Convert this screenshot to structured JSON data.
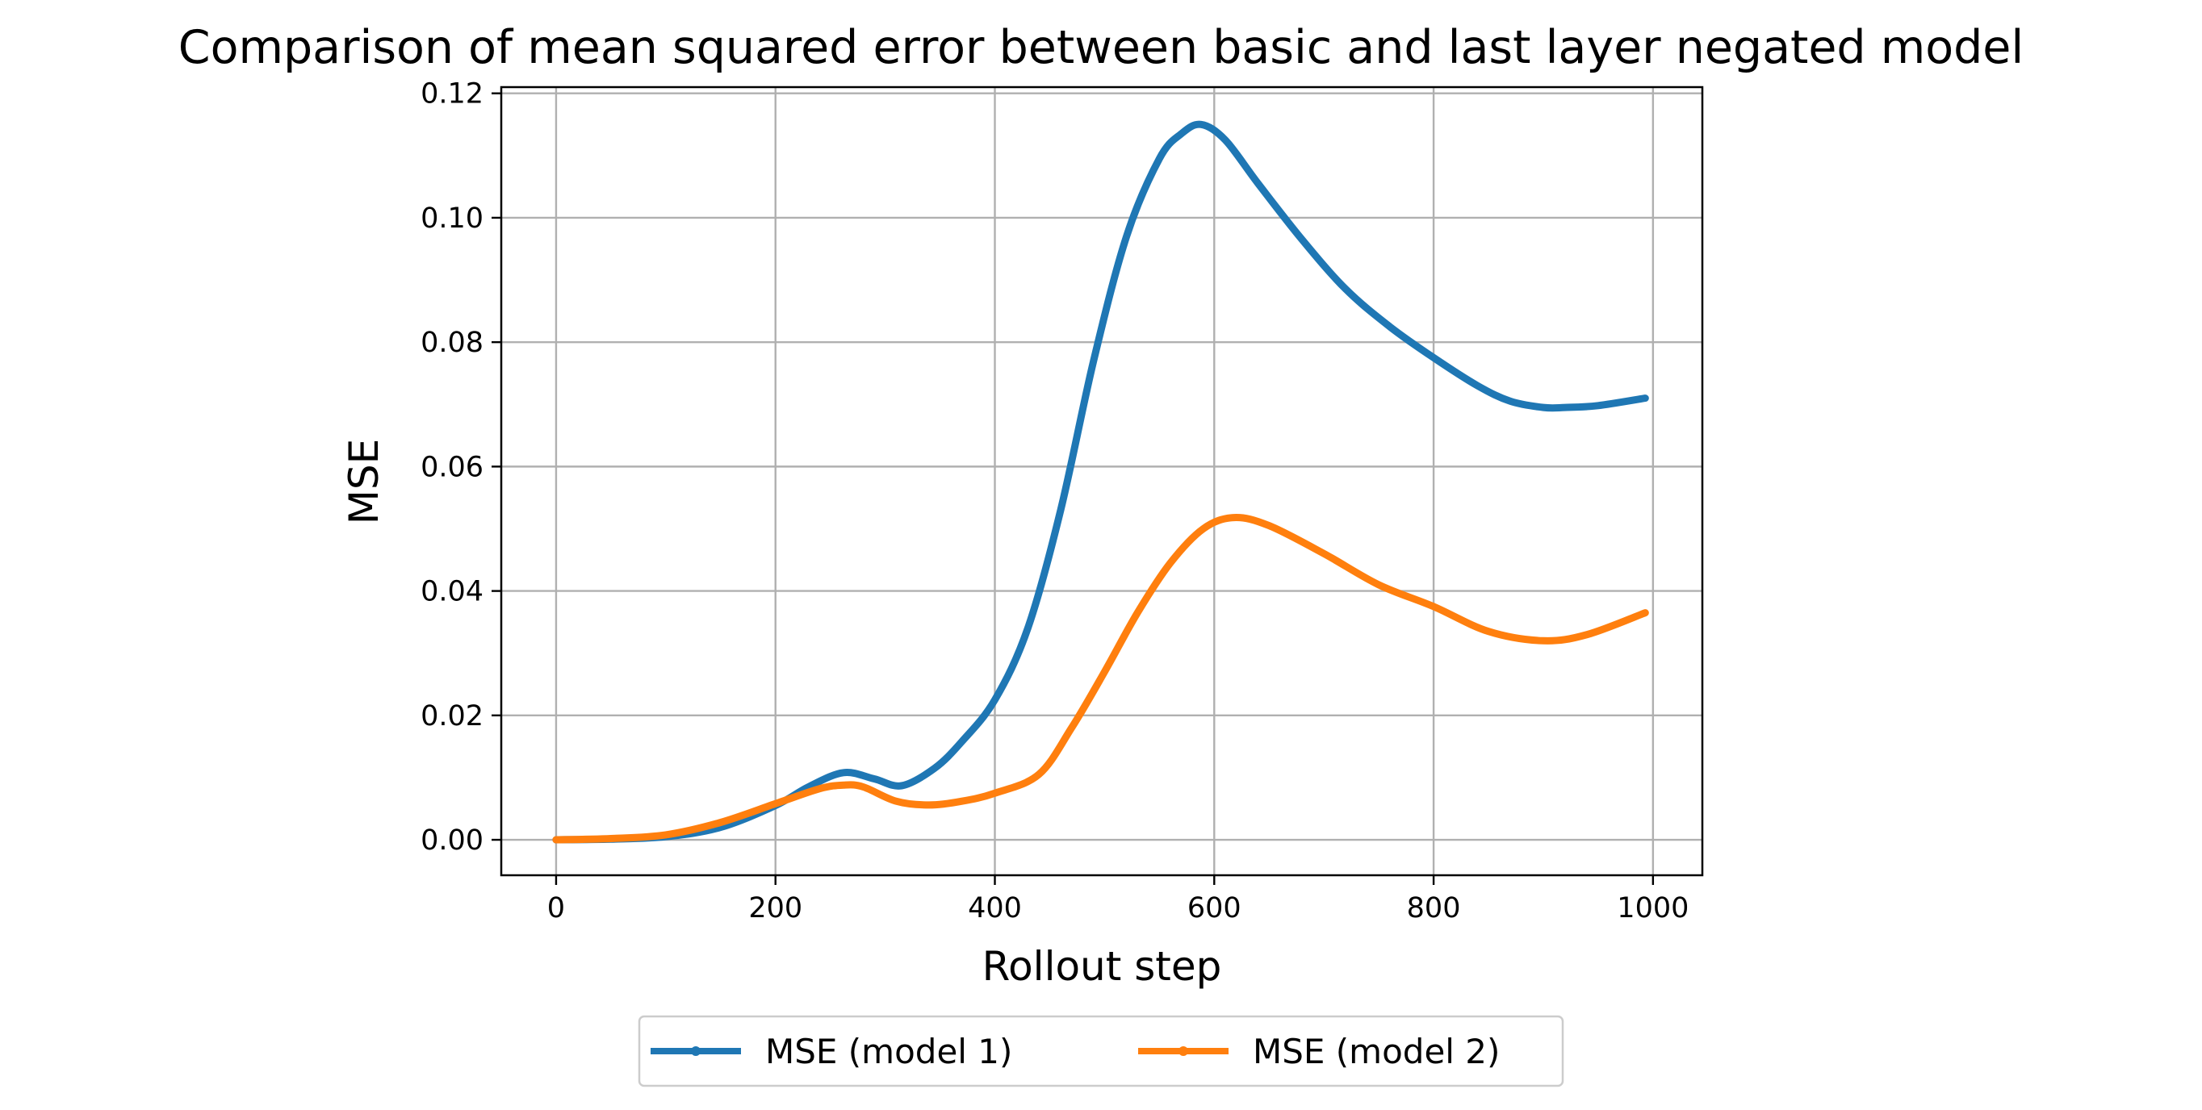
{
  "chart_data": {
    "type": "line",
    "title": "Comparison of mean squared error between basic and last layer negated model",
    "xlabel": "Rollout step",
    "ylabel": "MSE",
    "xlim": [
      -50,
      1045
    ],
    "ylim": [
      -0.0057,
      0.121
    ],
    "xticks": [
      0,
      200,
      400,
      600,
      800,
      1000
    ],
    "xtick_labels": [
      "0",
      "200",
      "400",
      "600",
      "800",
      "1000"
    ],
    "yticks": [
      0.0,
      0.02,
      0.04,
      0.06,
      0.08,
      0.1,
      0.12
    ],
    "ytick_labels": [
      "0.00",
      "0.02",
      "0.04",
      "0.06",
      "0.08",
      "0.10",
      "0.12"
    ],
    "grid": true,
    "legend": {
      "placement": "bottom-center, below axes",
      "ncol": 2
    },
    "series": [
      {
        "name": "MSE (model 1)",
        "color": "#1f77b4",
        "x": [
          0,
          50,
          100,
          150,
          200,
          230,
          262,
          290,
          315,
          345,
          370,
          400,
          430,
          460,
          490,
          520,
          550,
          570,
          588,
          610,
          640,
          680,
          720,
          760,
          800,
          840,
          870,
          900,
          920,
          950,
          993
        ],
        "y": [
          0.0,
          0.0001,
          0.0005,
          0.002,
          0.0055,
          0.0085,
          0.0108,
          0.0098,
          0.0087,
          0.0115,
          0.0158,
          0.0225,
          0.034,
          0.053,
          0.077,
          0.097,
          0.1095,
          0.1135,
          0.115,
          0.1125,
          0.1055,
          0.0965,
          0.0885,
          0.0825,
          0.0775,
          0.073,
          0.0705,
          0.0695,
          0.0695,
          0.0698,
          0.071
        ]
      },
      {
        "name": "MSE (model 2)",
        "color": "#ff7f0e",
        "x": [
          0,
          50,
          100,
          150,
          200,
          240,
          262,
          280,
          310,
          340,
          370,
          400,
          440,
          470,
          500,
          530,
          560,
          590,
          618,
          650,
          700,
          750,
          800,
          850,
          900,
          940,
          993
        ],
        "y": [
          0.0,
          0.0002,
          0.0008,
          0.0028,
          0.0058,
          0.0082,
          0.0088,
          0.0085,
          0.0062,
          0.0056,
          0.0062,
          0.0075,
          0.0105,
          0.018,
          0.027,
          0.0365,
          0.0445,
          0.05,
          0.0518,
          0.0505,
          0.046,
          0.041,
          0.0375,
          0.0335,
          0.032,
          0.033,
          0.0365
        ]
      }
    ]
  }
}
